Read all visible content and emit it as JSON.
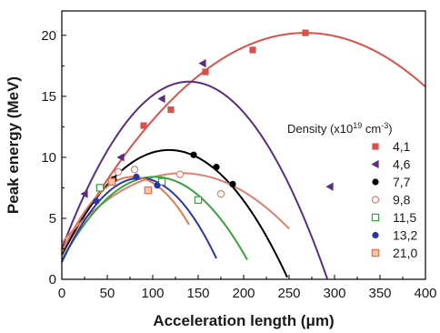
{
  "chart_data": {
    "type": "scatter",
    "xlabel": "Acceleration length (μm)",
    "ylabel": "Peak energy (MeV)",
    "xlim": [
      0,
      400
    ],
    "ylim": [
      0,
      22
    ],
    "xticks": [
      "0",
      "50",
      "100",
      "150",
      "200",
      "250",
      "300",
      "350",
      "400"
    ],
    "yticks": [
      "0",
      "5",
      "10",
      "15",
      "20"
    ],
    "legend": {
      "title_main": "Density (x10",
      "title_exp1": "19",
      "title_unit": " cm",
      "title_exp2": "-3",
      "title_close": ")",
      "placement": "right"
    },
    "series": [
      {
        "name": "4,1",
        "color": "#d9524a",
        "marker": "square-filled",
        "points": [
          [
            90,
            12.6
          ],
          [
            120,
            13.9
          ],
          [
            158,
            17.0
          ],
          [
            210,
            18.8
          ],
          [
            268,
            20.2
          ]
        ],
        "fit_peak": [
          268,
          20.2
        ],
        "fit_start": [
          0,
          2.0
        ],
        "fit_range": [
          0,
          400
        ]
      },
      {
        "name": "4,6",
        "color": "#5a2d82",
        "marker": "triangle-left-filled",
        "points": [
          [
            25,
            7.0
          ],
          [
            65,
            10.0
          ],
          [
            110,
            14.8
          ],
          [
            155,
            17.7
          ],
          [
            295,
            7.6
          ]
        ],
        "fit_peak": [
          140,
          16.2
        ],
        "fit_start": [
          0,
          2.5
        ],
        "fit_range": [
          0,
          330
        ]
      },
      {
        "name": "7,7",
        "color": "#000000",
        "marker": "circle-filled",
        "points": [
          [
            57,
            8.2
          ],
          [
            145,
            10.2
          ],
          [
            170,
            9.2
          ],
          [
            188,
            7.8
          ]
        ],
        "fit_peak": [
          118,
          10.6
        ],
        "fit_start": [
          0,
          2.0
        ],
        "fit_range": [
          0,
          250
        ]
      },
      {
        "name": "9,8",
        "color": "#e08070",
        "marker": "circle-open",
        "points": [
          [
            62,
            8.8
          ],
          [
            80,
            9.0
          ],
          [
            130,
            8.6
          ],
          [
            175,
            7.0
          ]
        ],
        "fit_peak": [
          132,
          8.7
        ],
        "fit_start": [
          0,
          3.0
        ],
        "fit_range": [
          0,
          250
        ]
      },
      {
        "name": "11,5",
        "color": "#3aa040",
        "marker": "square-open",
        "points": [
          [
            42,
            7.5
          ],
          [
            110,
            8.0
          ],
          [
            150,
            6.5
          ]
        ],
        "fit_peak": [
          102,
          8.4
        ],
        "fit_start": [
          0,
          1.6
        ],
        "fit_range": [
          0,
          205
        ]
      },
      {
        "name": "13,2",
        "color": "#2a36a8",
        "marker": "circle-filled",
        "points": [
          [
            38,
            6.4
          ],
          [
            82,
            8.4
          ],
          [
            105,
            7.7
          ]
        ],
        "fit_peak": [
          86,
          8.3
        ],
        "fit_start": [
          0,
          1.4
        ],
        "fit_range": [
          0,
          170
        ]
      },
      {
        "name": "21,0",
        "color": "#e07a50",
        "marker": "square-half",
        "points": [
          [
            55,
            8.0
          ],
          [
            95,
            7.3
          ]
        ],
        "fit_peak": [
          78,
          8.4
        ],
        "fit_start": [
          0,
          2.2
        ],
        "fit_range": [
          0,
          140
        ]
      }
    ]
  }
}
